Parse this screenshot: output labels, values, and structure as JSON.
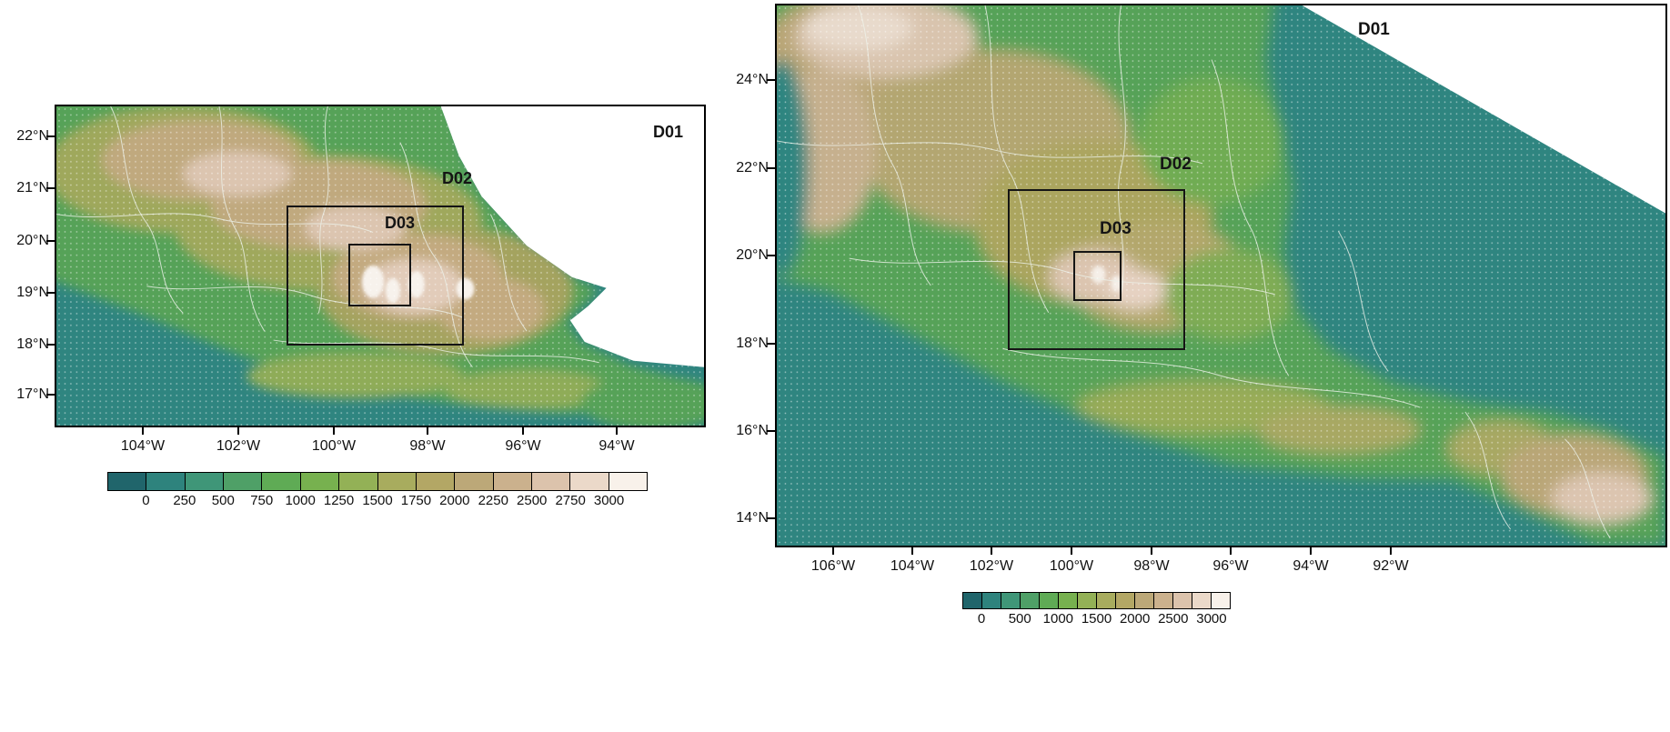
{
  "palette": {
    "ocean": "#2F8580",
    "land_base": "#57A259",
    "colorbar": [
      "#20656B",
      "#2E837D",
      "#3F9678",
      "#4FA067",
      "#5FAB55",
      "#77B14F",
      "#93B156",
      "#A8AC5E",
      "#B3A765",
      "#BCA878",
      "#CBB18D",
      "#DCC3AC",
      "#EBD9C9",
      "#F8F1EA"
    ]
  },
  "panels": {
    "left": {
      "domain_labels": {
        "d01": "D01",
        "d02": "D02",
        "d03": "D03"
      },
      "lat_ticks": [
        "22°N",
        "21°N",
        "20°N",
        "19°N",
        "18°N",
        "17°N"
      ],
      "lon_ticks": [
        "104°W",
        "102°W",
        "100°W",
        "98°W",
        "96°W",
        "94°W"
      ],
      "colorbar_labels": [
        "0",
        "250",
        "500",
        "750",
        "1000",
        "1250",
        "1500",
        "1750",
        "2000",
        "2250",
        "2500",
        "2750",
        "3000"
      ]
    },
    "right": {
      "domain_labels": {
        "d01": "D01",
        "d02": "D02",
        "d03": "D03"
      },
      "lat_ticks": [
        "24°N",
        "22°N",
        "20°N",
        "18°N",
        "16°N",
        "14°N"
      ],
      "lon_ticks": [
        "106°W",
        "104°W",
        "102°W",
        "100°W",
        "98°W",
        "96°W",
        "94°W",
        "92°W"
      ],
      "colorbar_labels": [
        "0",
        "500",
        "1000",
        "1500",
        "2000",
        "2500",
        "3000"
      ]
    }
  }
}
